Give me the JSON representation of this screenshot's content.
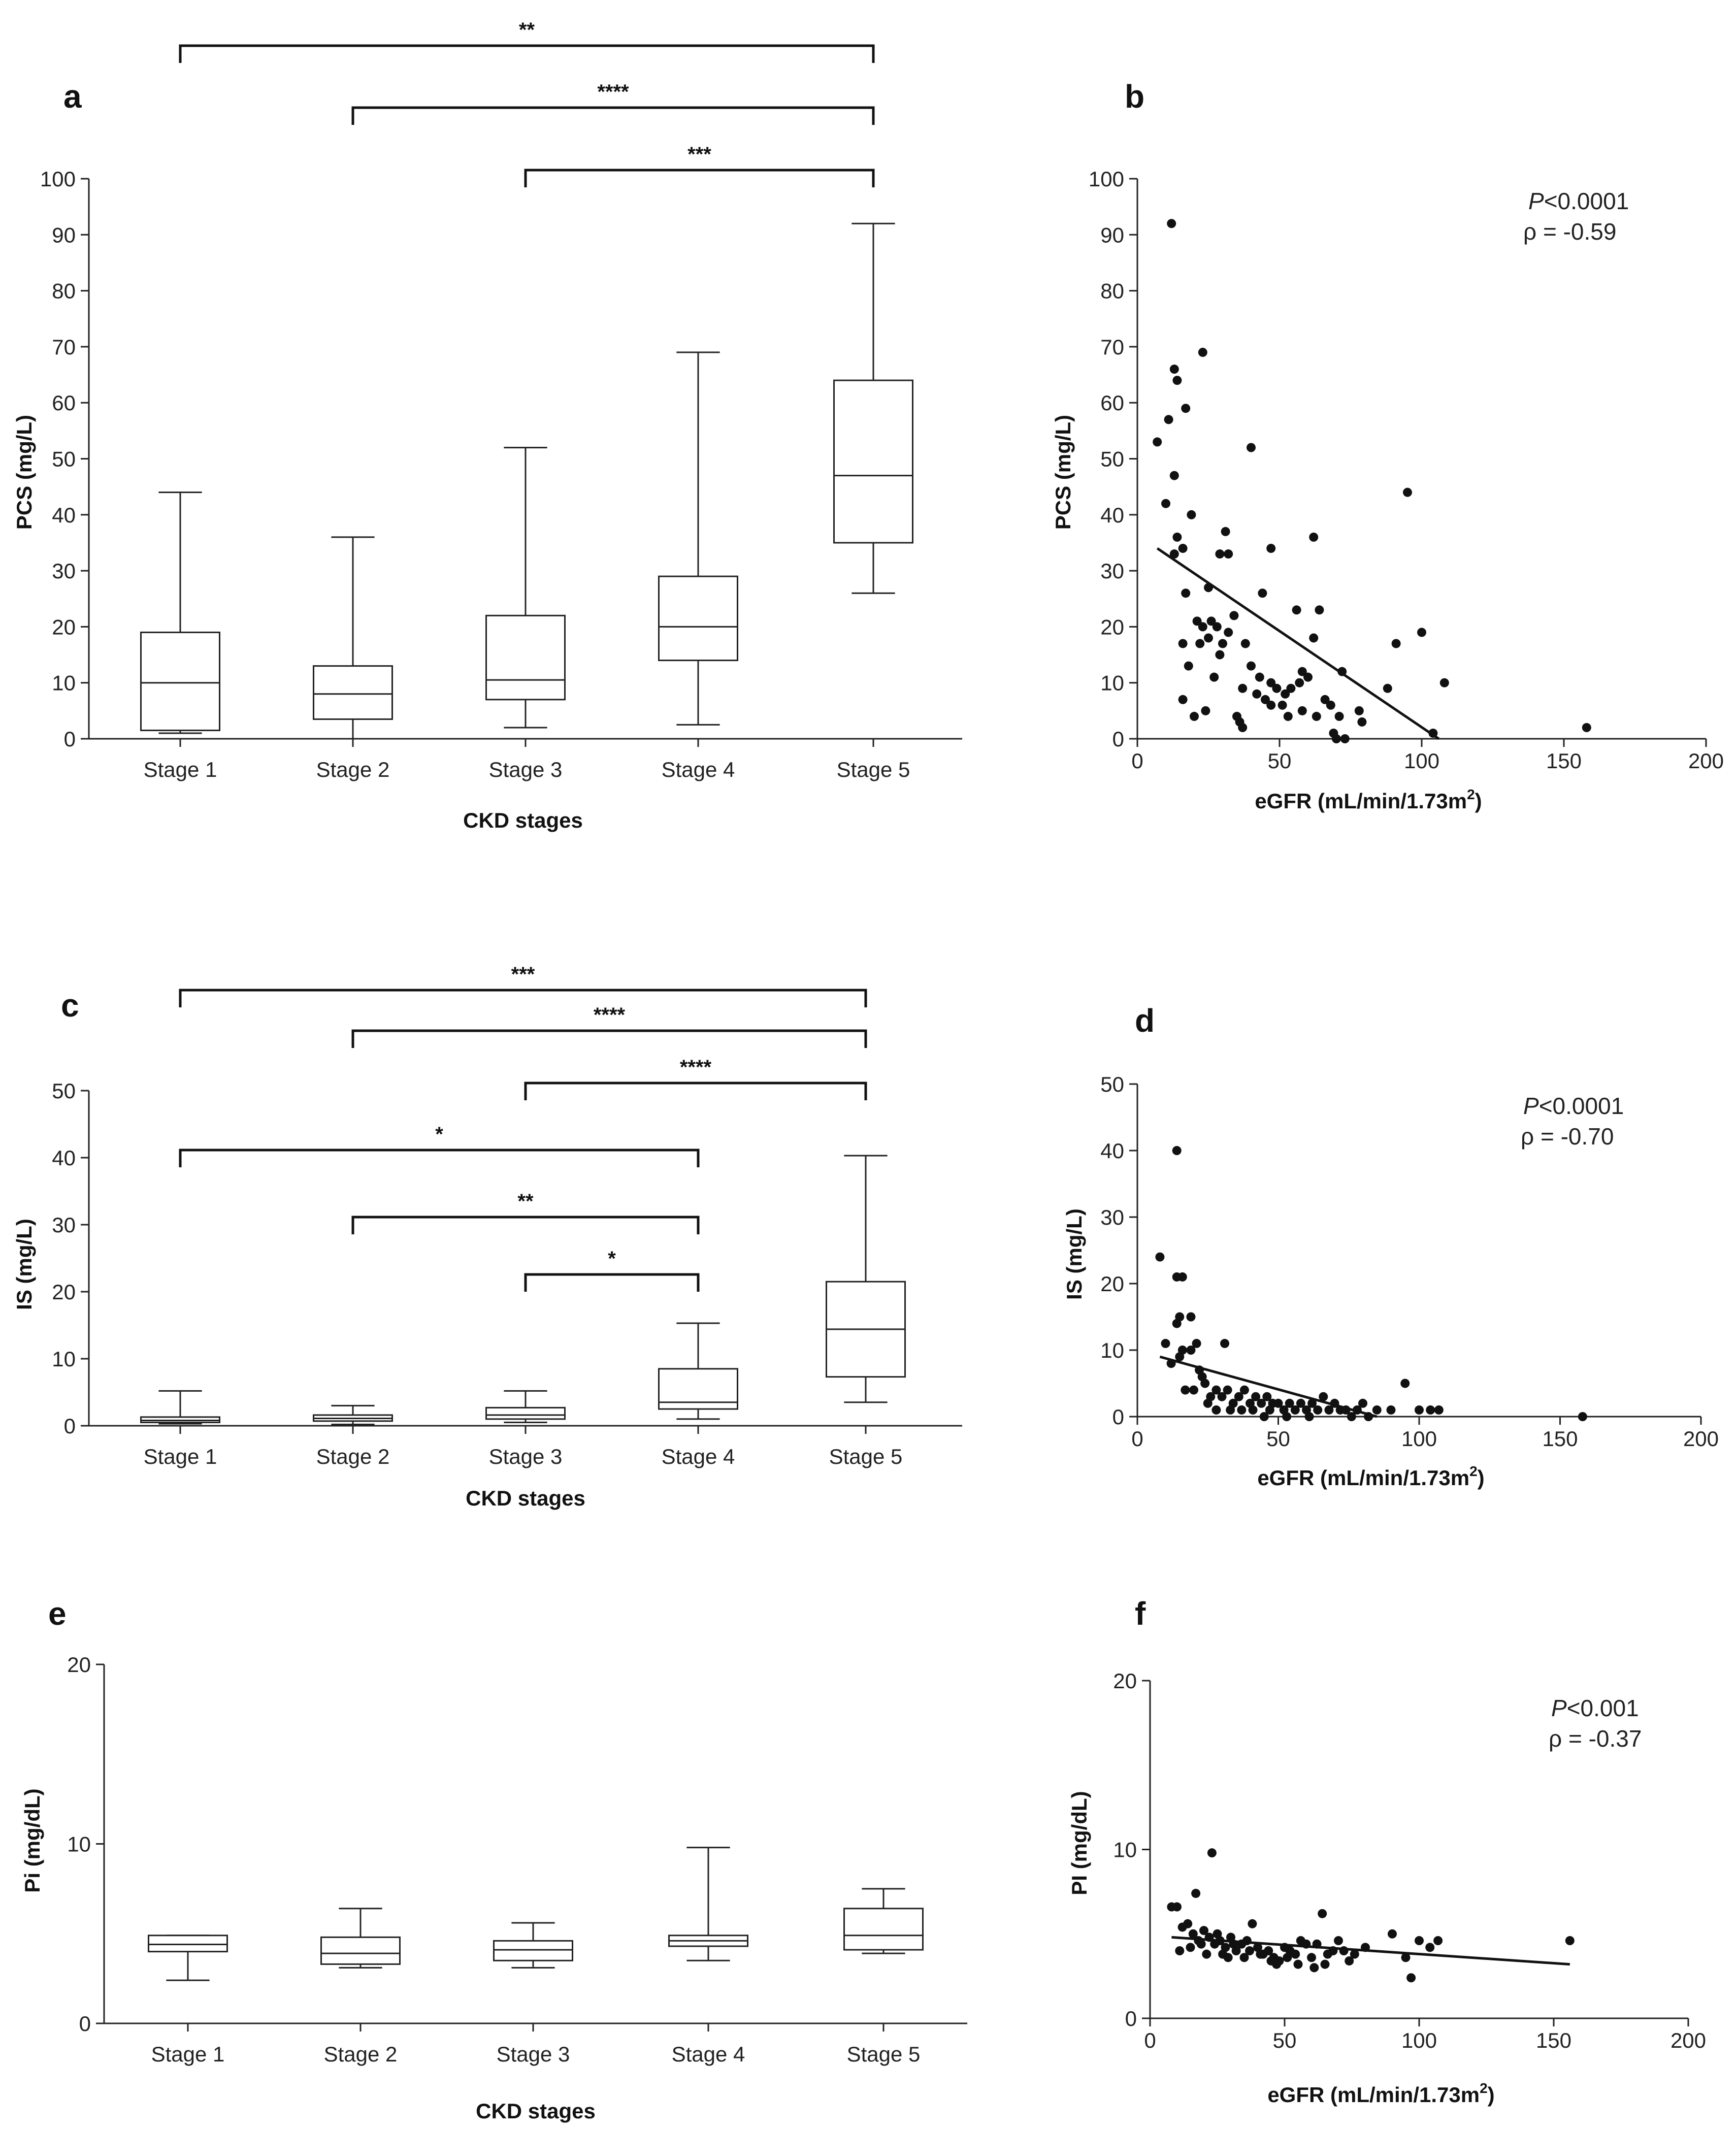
{
  "chart_data": [
    {
      "id": "a",
      "type": "box",
      "panel_label": "a",
      "xlabel": "CKD stages",
      "ylabel": "PCS (mg/L)",
      "ylim": [
        0,
        100
      ],
      "yticks": [
        0,
        10,
        20,
        30,
        40,
        50,
        60,
        70,
        80,
        90,
        100
      ],
      "categories": [
        "Stage 1",
        "Stage 2",
        "Stage 3",
        "Stage 4",
        "Stage 5"
      ],
      "boxes": [
        {
          "min": 1,
          "q1": 1.5,
          "median": 10,
          "q3": 19,
          "max": 44
        },
        {
          "min": 0,
          "q1": 3.5,
          "median": 8,
          "q3": 13,
          "max": 36
        },
        {
          "min": 2,
          "q1": 7,
          "median": 10.5,
          "q3": 22,
          "max": 52
        },
        {
          "min": 2.5,
          "q1": 14,
          "median": 20,
          "q3": 29,
          "max": 69
        },
        {
          "min": 26,
          "q1": 35,
          "median": 47,
          "q3": 64,
          "max": 92
        }
      ],
      "significance": [
        {
          "from": "Stage 1",
          "to": "Stage 5",
          "label": "**"
        },
        {
          "from": "Stage 2",
          "to": "Stage 5",
          "label": "****"
        },
        {
          "from": "Stage 3",
          "to": "Stage 5",
          "label": "***"
        }
      ]
    },
    {
      "id": "b",
      "type": "scatter",
      "panel_label": "b",
      "xlabel": "eGFR (mL/min/1.73m",
      "xlabel_sup": "2",
      "xlabel_suffix": ")",
      "ylabel": "PCS (mg/L)",
      "xlim": [
        0,
        200
      ],
      "ylim": [
        0,
        100
      ],
      "xticks": [
        0,
        50,
        100,
        150,
        200
      ],
      "yticks": [
        0,
        10,
        20,
        30,
        40,
        50,
        60,
        70,
        80,
        90,
        100
      ],
      "stat_p_symbol": "P",
      "stat_p_rest": "<0.0001",
      "stat_rho": "ρ = -0.59",
      "fit_line": {
        "x0": 7,
        "y0": 34,
        "x1": 106,
        "y1": 0
      },
      "points": [
        [
          12,
          92
        ],
        [
          13,
          66
        ],
        [
          14,
          64
        ],
        [
          23,
          69
        ],
        [
          11,
          57
        ],
        [
          17,
          59
        ],
        [
          7,
          53
        ],
        [
          13,
          47
        ],
        [
          10,
          42
        ],
        [
          19,
          40
        ],
        [
          14,
          36
        ],
        [
          16,
          34
        ],
        [
          13,
          33
        ],
        [
          31,
          37
        ],
        [
          32,
          33
        ],
        [
          29,
          33
        ],
        [
          17,
          26
        ],
        [
          25,
          27
        ],
        [
          21,
          21
        ],
        [
          23,
          20
        ],
        [
          26,
          21
        ],
        [
          28,
          20
        ],
        [
          25,
          18
        ],
        [
          32,
          19
        ],
        [
          34,
          22
        ],
        [
          16,
          17
        ],
        [
          22,
          17
        ],
        [
          30,
          17
        ],
        [
          38,
          17
        ],
        [
          18,
          13
        ],
        [
          29,
          15
        ],
        [
          40,
          13
        ],
        [
          43,
          11
        ],
        [
          37,
          9
        ],
        [
          42,
          8
        ],
        [
          45,
          7
        ],
        [
          27,
          11
        ],
        [
          24,
          5
        ],
        [
          20,
          4
        ],
        [
          35,
          4
        ],
        [
          36,
          3
        ],
        [
          37,
          2
        ],
        [
          16,
          7
        ],
        [
          47,
          10
        ],
        [
          49,
          9
        ],
        [
          52,
          8
        ],
        [
          54,
          9
        ],
        [
          57,
          10
        ],
        [
          58,
          12
        ],
        [
          60,
          11
        ],
        [
          62,
          18
        ],
        [
          64,
          23
        ],
        [
          56,
          23
        ],
        [
          44,
          26
        ],
        [
          40,
          52
        ],
        [
          47,
          34
        ],
        [
          62,
          36
        ],
        [
          51,
          6
        ],
        [
          47,
          6
        ],
        [
          53,
          4
        ],
        [
          58,
          5
        ],
        [
          63,
          4
        ],
        [
          66,
          7
        ],
        [
          68,
          6
        ],
        [
          71,
          4
        ],
        [
          72,
          12
        ],
        [
          70,
          0
        ],
        [
          73,
          0
        ],
        [
          78,
          5
        ],
        [
          79,
          3
        ],
        [
          88,
          9
        ],
        [
          91,
          17
        ],
        [
          95,
          44
        ],
        [
          100,
          19
        ],
        [
          104,
          1
        ],
        [
          108,
          10
        ],
        [
          158,
          2
        ],
        [
          69,
          1
        ]
      ]
    },
    {
      "id": "c",
      "type": "box",
      "panel_label": "c",
      "xlabel": "CKD stages",
      "ylabel": "IS (mg/L)",
      "ylim": [
        0,
        50
      ],
      "yticks": [
        0,
        10,
        20,
        30,
        40,
        50
      ],
      "categories": [
        "Stage 1",
        "Stage 2",
        "Stage 3",
        "Stage 4",
        "Stage 5"
      ],
      "boxes": [
        {
          "min": 0.3,
          "q1": 0.5,
          "median": 0.8,
          "q3": 1.3,
          "max": 5.2
        },
        {
          "min": 0.2,
          "q1": 0.7,
          "median": 1.1,
          "q3": 1.6,
          "max": 3.0
        },
        {
          "min": 0.5,
          "q1": 1.0,
          "median": 1.6,
          "q3": 2.7,
          "max": 5.2
        },
        {
          "min": 1.0,
          "q1": 2.5,
          "median": 3.5,
          "q3": 8.5,
          "max": 15.3
        },
        {
          "min": 3.5,
          "q1": 7.3,
          "median": 14.4,
          "q3": 21.5,
          "max": 40.3
        }
      ],
      "significance": [
        {
          "from": "Stage 1",
          "to": "Stage 5",
          "label": "***"
        },
        {
          "from": "Stage 2",
          "to": "Stage 5",
          "label": "****"
        },
        {
          "from": "Stage 3",
          "to": "Stage 5",
          "label": "****"
        },
        {
          "from": "Stage 1",
          "to": "Stage 4",
          "label": "*"
        },
        {
          "from": "Stage 2",
          "to": "Stage 4",
          "label": "**"
        },
        {
          "from": "Stage 3",
          "to": "Stage 4",
          "label": "*"
        }
      ]
    },
    {
      "id": "d",
      "type": "scatter",
      "panel_label": "d",
      "xlabel": "eGFR (mL/min/1.73m",
      "xlabel_sup": "2",
      "xlabel_suffix": ")",
      "ylabel": "IS (mg/L)",
      "xlim": [
        0,
        200
      ],
      "ylim": [
        0,
        50
      ],
      "xticks": [
        0,
        50,
        100,
        150,
        200
      ],
      "yticks": [
        0,
        10,
        20,
        30,
        40,
        50
      ],
      "stat_p_symbol": "P",
      "stat_p_rest": "<0.0001",
      "stat_rho": "ρ = -0.70",
      "fit_line": {
        "x0": 8,
        "y0": 9,
        "x1": 85,
        "y1": 0
      },
      "points": [
        [
          14,
          40
        ],
        [
          8,
          24
        ],
        [
          14,
          21
        ],
        [
          16,
          21
        ],
        [
          19,
          15
        ],
        [
          15,
          15
        ],
        [
          14,
          14
        ],
        [
          10,
          11
        ],
        [
          12,
          8
        ],
        [
          15,
          9
        ],
        [
          16,
          10
        ],
        [
          19,
          10
        ],
        [
          21,
          11
        ],
        [
          23,
          6
        ],
        [
          31,
          11
        ],
        [
          22,
          7
        ],
        [
          17,
          4
        ],
        [
          20,
          4
        ],
        [
          24,
          5
        ],
        [
          26,
          3
        ],
        [
          28,
          4
        ],
        [
          30,
          3
        ],
        [
          32,
          4
        ],
        [
          34,
          2
        ],
        [
          36,
          3
        ],
        [
          38,
          4
        ],
        [
          40,
          2
        ],
        [
          42,
          3
        ],
        [
          44,
          2
        ],
        [
          46,
          3
        ],
        [
          48,
          2
        ],
        [
          50,
          2
        ],
        [
          52,
          1
        ],
        [
          54,
          2
        ],
        [
          56,
          1
        ],
        [
          58,
          2
        ],
        [
          60,
          1
        ],
        [
          62,
          2
        ],
        [
          64,
          1
        ],
        [
          66,
          3
        ],
        [
          68,
          1
        ],
        [
          70,
          2
        ],
        [
          72,
          1
        ],
        [
          74,
          1
        ],
        [
          76,
          0
        ],
        [
          78,
          1
        ],
        [
          80,
          2
        ],
        [
          82,
          0
        ],
        [
          85,
          1
        ],
        [
          90,
          1
        ],
        [
          95,
          5
        ],
        [
          100,
          1
        ],
        [
          104,
          1
        ],
        [
          107,
          1
        ],
        [
          158,
          0
        ],
        [
          25,
          2
        ],
        [
          28,
          1
        ],
        [
          33,
          1
        ],
        [
          37,
          1
        ],
        [
          41,
          1
        ],
        [
          45,
          0
        ],
        [
          47,
          1
        ],
        [
          53,
          0
        ],
        [
          61,
          0
        ]
      ]
    },
    {
      "id": "e",
      "type": "box",
      "panel_label": "e",
      "xlabel": "CKD stages",
      "ylabel": "Pi (mg/dL)",
      "ylim": [
        0,
        20
      ],
      "yticks": [
        0,
        10,
        20
      ],
      "categories": [
        "Stage 1",
        "Stage 2",
        "Stage 3",
        "Stage 4",
        "Stage 5"
      ],
      "boxes": [
        {
          "min": 2.4,
          "q1": 4.0,
          "median": 4.4,
          "q3": 4.9,
          "max": 4.9
        },
        {
          "min": 3.1,
          "q1": 3.3,
          "median": 3.9,
          "q3": 4.8,
          "max": 6.4
        },
        {
          "min": 3.1,
          "q1": 3.5,
          "median": 4.1,
          "q3": 4.6,
          "max": 5.6
        },
        {
          "min": 3.5,
          "q1": 4.3,
          "median": 4.6,
          "q3": 4.9,
          "max": 9.8
        },
        {
          "min": 3.9,
          "q1": 4.1,
          "median": 4.9,
          "q3": 6.4,
          "max": 7.5
        }
      ],
      "significance": []
    },
    {
      "id": "f",
      "type": "scatter",
      "panel_label": "f",
      "xlabel": "eGFR (mL/min/1.73m",
      "xlabel_sup": "2",
      "xlabel_suffix": ")",
      "ylabel": "PI (mg/dL)",
      "xlim": [
        0,
        200
      ],
      "ylim": [
        0,
        20
      ],
      "xticks": [
        0,
        50,
        100,
        150,
        200
      ],
      "yticks": [
        0,
        10,
        20
      ],
      "stat_p_symbol": "P",
      "stat_p_rest": "<0.001",
      "stat_rho": "ρ = -0.37",
      "fit_line": {
        "x0": 8,
        "y0": 4.8,
        "x1": 156,
        "y1": 3.2
      },
      "points": [
        [
          23,
          9.8
        ],
        [
          8,
          6.6
        ],
        [
          10,
          6.6
        ],
        [
          17,
          7.4
        ],
        [
          12,
          5.4
        ],
        [
          14,
          5.6
        ],
        [
          16,
          5.0
        ],
        [
          18,
          4.6
        ],
        [
          20,
          5.2
        ],
        [
          22,
          4.8
        ],
        [
          24,
          4.4
        ],
        [
          26,
          4.6
        ],
        [
          28,
          4.2
        ],
        [
          30,
          4.8
        ],
        [
          32,
          4.0
        ],
        [
          34,
          4.4
        ],
        [
          36,
          4.6
        ],
        [
          38,
          5.6
        ],
        [
          40,
          4.2
        ],
        [
          42,
          3.8
        ],
        [
          44,
          4.0
        ],
        [
          46,
          3.6
        ],
        [
          48,
          3.4
        ],
        [
          50,
          4.2
        ],
        [
          52,
          4.0
        ],
        [
          54,
          3.8
        ],
        [
          56,
          4.6
        ],
        [
          58,
          4.4
        ],
        [
          60,
          3.6
        ],
        [
          62,
          4.4
        ],
        [
          64,
          6.2
        ],
        [
          66,
          3.8
        ],
        [
          68,
          4.0
        ],
        [
          70,
          4.6
        ],
        [
          72,
          4.0
        ],
        [
          74,
          3.4
        ],
        [
          76,
          3.8
        ],
        [
          80,
          4.2
        ],
        [
          90,
          5.0
        ],
        [
          95,
          3.6
        ],
        [
          97,
          2.4
        ],
        [
          100,
          4.6
        ],
        [
          104,
          4.2
        ],
        [
          107,
          4.6
        ],
        [
          156,
          4.6
        ],
        [
          11,
          4.0
        ],
        [
          15,
          4.2
        ],
        [
          19,
          4.4
        ],
        [
          21,
          3.8
        ],
        [
          25,
          5.0
        ],
        [
          27,
          3.8
        ],
        [
          29,
          3.6
        ],
        [
          31,
          4.4
        ],
        [
          35,
          3.6
        ],
        [
          37,
          4.0
        ],
        [
          41,
          3.8
        ],
        [
          45,
          3.4
        ],
        [
          47,
          3.2
        ],
        [
          51,
          3.6
        ],
        [
          55,
          3.2
        ],
        [
          61,
          3.0
        ],
        [
          65,
          3.2
        ]
      ]
    }
  ]
}
